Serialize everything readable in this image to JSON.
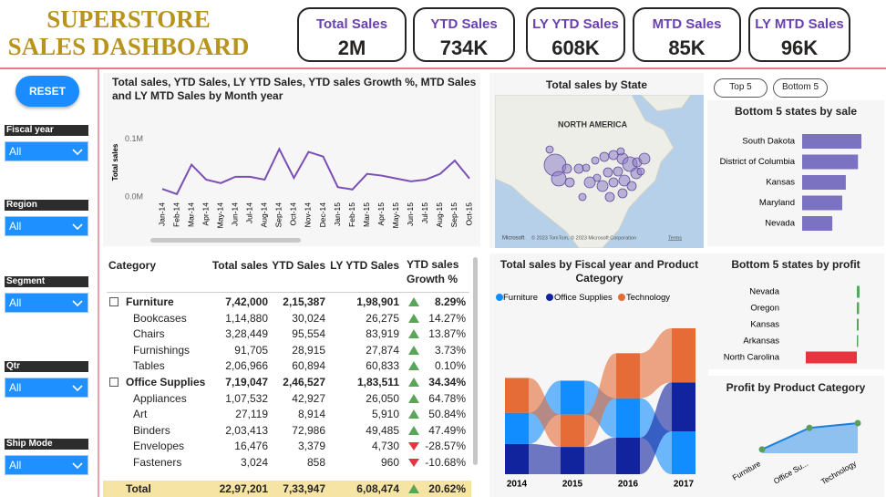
{
  "header": {
    "title_lines": [
      "SUPERSTORE",
      "SALES DASHBOARD"
    ]
  },
  "kpis": [
    {
      "label": "Total Sales",
      "value": "2M"
    },
    {
      "label": "YTD Sales",
      "value": "734K"
    },
    {
      "label": "LY YTD Sales",
      "value": "608K"
    },
    {
      "label": "MTD Sales",
      "value": "85K"
    },
    {
      "label": "LY MTD Sales",
      "value": "96K"
    }
  ],
  "reset_button": "RESET",
  "filters": [
    {
      "label": "Fiscal year",
      "value": "All"
    },
    {
      "label": "Region",
      "value": "All"
    },
    {
      "label": "Segment",
      "value": "All"
    },
    {
      "label": "Qtr",
      "value": "All"
    },
    {
      "label": "Ship Mode",
      "value": "All"
    }
  ],
  "ranking_buttons": [
    "Top 5",
    "Bottom 5"
  ],
  "chart_data": [
    {
      "type": "line",
      "title": "Total sales, YTD Sales, LY YTD Sales, YTD sales Growth %, MTD Sales and LY MTD Sales by Month year",
      "y_label": "Total sales",
      "categories": [
        "Jan-14",
        "Feb-14",
        "Mar-14",
        "Apr-14",
        "May-14",
        "Jun-14",
        "Jul-14",
        "Aug-14",
        "Sep-14",
        "Oct-14",
        "Nov-14",
        "Dec-14",
        "Jan-15",
        "Feb-15",
        "Mar-15",
        "Apr-15",
        "May-15",
        "Jun-15",
        "Jul-15",
        "Aug-15",
        "Sep-15",
        "Oct-15"
      ],
      "values": [
        0.014,
        0.005,
        0.056,
        0.03,
        0.024,
        0.035,
        0.035,
        0.03,
        0.083,
        0.033,
        0.078,
        0.07,
        0.017,
        0.013,
        0.04,
        0.037,
        0.032,
        0.027,
        0.03,
        0.04,
        0.063,
        0.032
      ],
      "color": "#7b4fb5",
      "ylim": [
        0,
        0.12
      ],
      "yticks": [
        {
          "value": 0,
          "label": "0.0M"
        },
        {
          "value": 0.1,
          "label": "0.1M"
        }
      ]
    },
    {
      "type": "map",
      "title": "Total sales by State",
      "region_label": "NORTH AMERICA",
      "logo": "Microsoft",
      "attribution": "© 2023 TomTom, © 2023 Microsoft Corporation",
      "terms": "Terms"
    },
    {
      "type": "bar",
      "title": "Bottom 5 states by sale",
      "categories": [
        "South Dakota",
        "District of Columbia",
        "Kansas",
        "Maryland",
        "Nevada"
      ],
      "values": [
        1316,
        1240,
        970,
        890,
        670
      ],
      "color": "#7b72c2"
    },
    {
      "type": "bar",
      "title": "Bottom 5 states by profit",
      "categories": [
        "Nevada",
        "Oregon",
        "Kansas",
        "Arkansas",
        "North Carolina"
      ],
      "values": [
        400,
        330,
        270,
        70,
        -7491
      ],
      "color": "#5aa55a",
      "negative_color": "#e8343f"
    },
    {
      "type": "ribbon",
      "title": "Total sales by Fiscal year and Product Category",
      "categories": [
        "2014",
        "2015",
        "2016",
        "2017"
      ],
      "series": [
        {
          "name": "Furniture",
          "color": "#118dff",
          "values": [
            157193,
            170518,
            198901,
            215387
          ]
        },
        {
          "name": "Office Supplies",
          "color": "#12239e",
          "values": [
            151776,
            137233,
            183511,
            246527
          ]
        },
        {
          "name": "Technology",
          "color": "#e66c37",
          "values": [
            175278,
            162781,
            226062,
            272033
          ]
        }
      ]
    },
    {
      "type": "area",
      "title": "Profit by Product Category",
      "categories": [
        "Furniture",
        "Office Su...",
        "Technology"
      ],
      "values": [
        18451,
        122491,
        145455
      ],
      "color": "#1e7fd8",
      "fill": "#8ec0f0",
      "marker_color": "#5a9e5a"
    }
  ],
  "table": {
    "columns": [
      "Category",
      "Total sales",
      "YTD Sales",
      "LY YTD Sales",
      "YTD sales Growth %"
    ],
    "rows": [
      {
        "group": true,
        "cells": [
          "Furniture",
          "7,42,000",
          "2,15,387",
          "1,98,901",
          "8.29%"
        ]
      },
      {
        "group": false,
        "cells": [
          "Bookcases",
          "1,14,880",
          "30,024",
          "26,275",
          "14.27%"
        ]
      },
      {
        "group": false,
        "cells": [
          "Chairs",
          "3,28,449",
          "95,554",
          "83,919",
          "13.87%"
        ]
      },
      {
        "group": false,
        "cells": [
          "Furnishings",
          "91,705",
          "28,915",
          "27,874",
          "3.73%"
        ]
      },
      {
        "group": false,
        "cells": [
          "Tables",
          "2,06,966",
          "60,894",
          "60,833",
          "0.10%"
        ]
      },
      {
        "group": true,
        "cells": [
          "Office Supplies",
          "7,19,047",
          "2,46,527",
          "1,83,511",
          "34.34%"
        ]
      },
      {
        "group": false,
        "cells": [
          "Appliances",
          "1,07,532",
          "42,927",
          "26,050",
          "64.78%"
        ]
      },
      {
        "group": false,
        "cells": [
          "Art",
          "27,119",
          "8,914",
          "5,910",
          "50.84%"
        ]
      },
      {
        "group": false,
        "cells": [
          "Binders",
          "2,03,413",
          "72,986",
          "49,485",
          "47.49%"
        ]
      },
      {
        "group": false,
        "cells": [
          "Envelopes",
          "16,476",
          "3,379",
          "4,730",
          "-28.57%"
        ]
      },
      {
        "group": false,
        "cells": [
          "Fasteners",
          "3,024",
          "858",
          "960",
          "-10.68%"
        ]
      }
    ],
    "total": [
      "Total",
      "22,97,201",
      "7,33,947",
      "6,08,474",
      "20.62%"
    ]
  }
}
